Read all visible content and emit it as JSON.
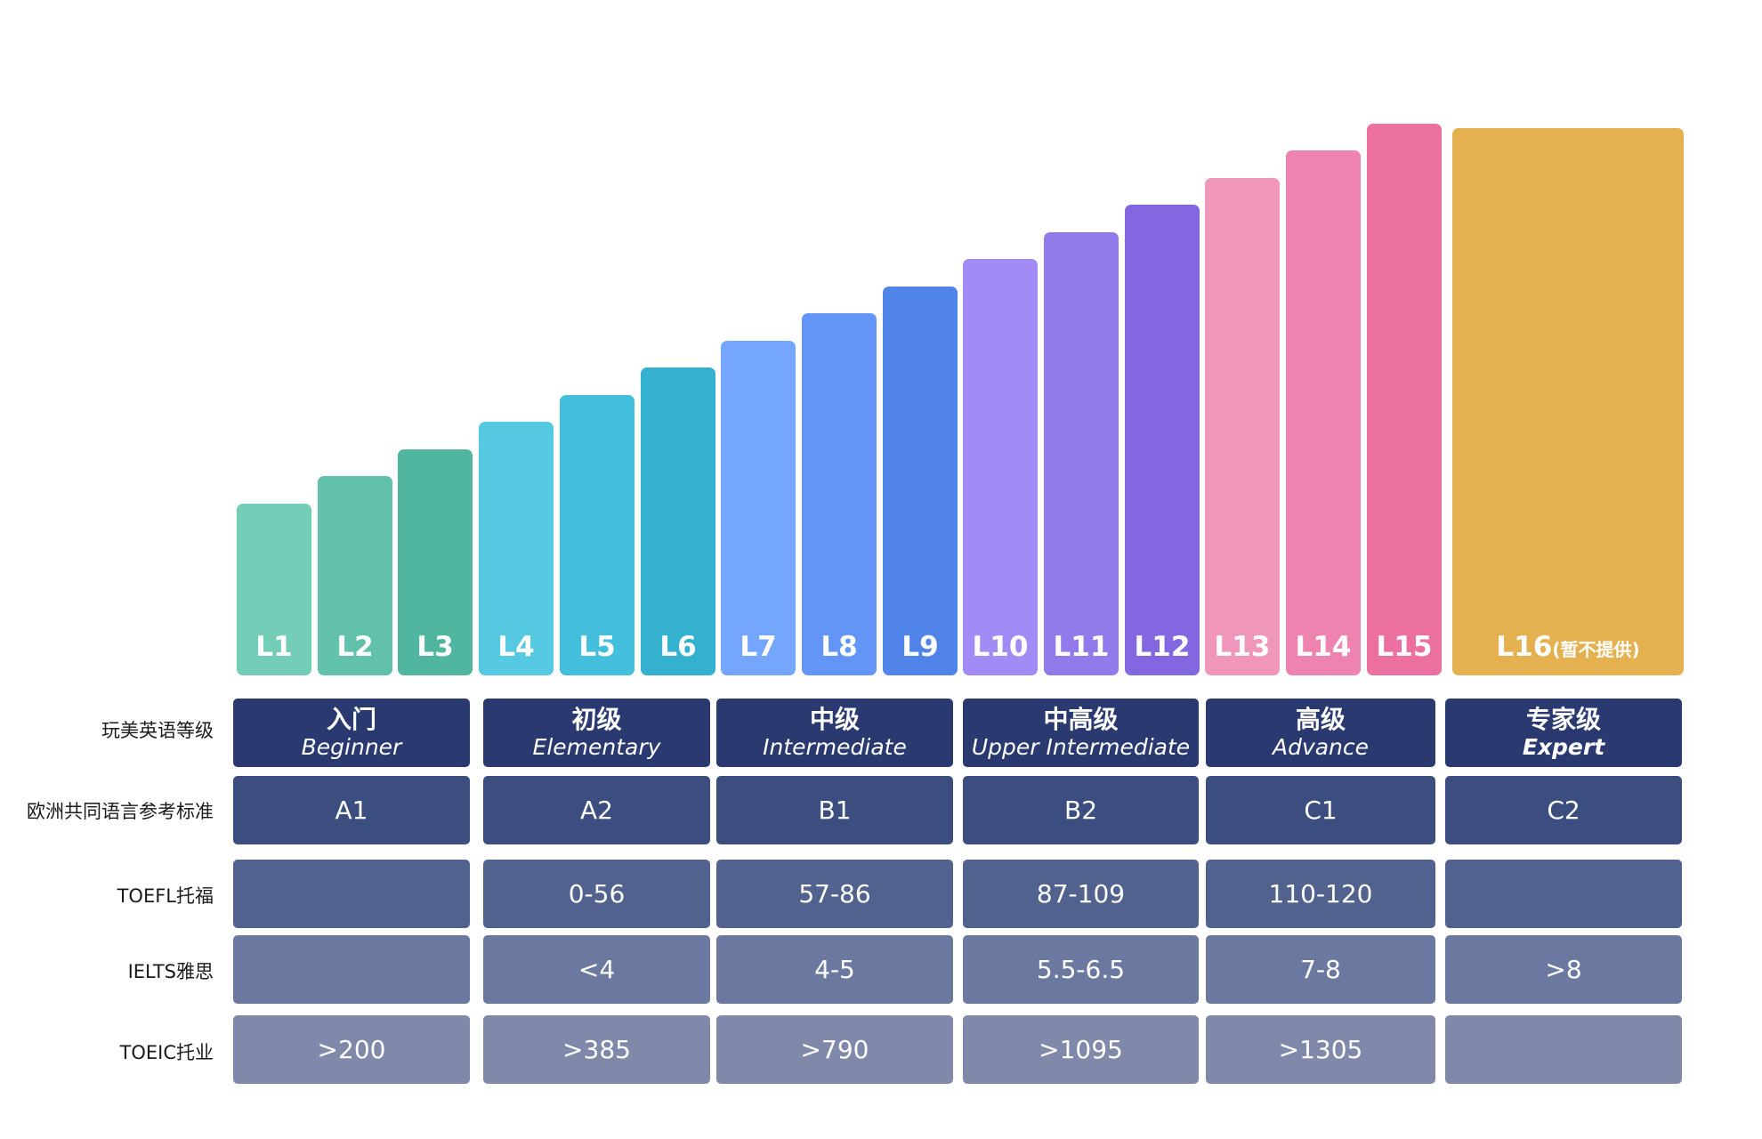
{
  "chart_data": {
    "type": "bar",
    "categories": [
      "L1",
      "L2",
      "L3",
      "L4",
      "L5",
      "L6",
      "L7",
      "L8",
      "L9",
      "L10",
      "L11",
      "L12",
      "L13",
      "L14",
      "L15",
      "L16"
    ],
    "values": [
      1,
      2,
      3,
      4,
      5,
      6,
      7,
      8,
      9,
      10,
      11,
      12,
      13,
      14,
      15,
      16
    ],
    "bar_labels": [
      "L1",
      "L2",
      "L3",
      "L4",
      "L5",
      "L6",
      "L7",
      "L8",
      "L9",
      "L10",
      "L11",
      "L12",
      "L13",
      "L14",
      "L15",
      "L16"
    ],
    "last_bar_note": "(暂不提供)",
    "colors": [
      "#74cdb7",
      "#62c1aa",
      "#50b69f",
      "#55c9e1",
      "#43bedb",
      "#33b1cf",
      "#75a6fe",
      "#6395f7",
      "#5184e9",
      "#a28bf5",
      "#937aeb",
      "#8267e0",
      "#ef96ba",
      "#ed83ae",
      "#eb6f9f",
      "#e5b150"
    ]
  },
  "table": {
    "row_labels": [
      "玩美英语等级",
      "欧洲共同语言参考标准",
      "TOEFL托福",
      "IELTS雅思",
      "TOEIC托业"
    ],
    "levels": [
      {
        "cn": "入门",
        "en": "Beginner"
      },
      {
        "cn": "初级",
        "en": "Elementary"
      },
      {
        "cn": "中级",
        "en": "Intermediate"
      },
      {
        "cn": "中高级",
        "en": "Upper Intermediate"
      },
      {
        "cn": "高级",
        "en": "Advance"
      },
      {
        "cn": "专家级",
        "en": "Expert"
      }
    ],
    "cefr": [
      "A1",
      "A2",
      "B1",
      "B2",
      "C1",
      "C2"
    ],
    "toefl": [
      "",
      "0-56",
      "57-86",
      "87-109",
      "110-120",
      ""
    ],
    "ielts": [
      "",
      "<4",
      "4-5",
      "5.5-6.5",
      "7-8",
      ">8"
    ],
    "toeic": [
      ">200",
      ">385",
      ">790",
      ">1095",
      ">1305",
      ""
    ],
    "row_colors": [
      "#2a3a70",
      "#3c4e80",
      "#52628e",
      "#6b78a0",
      "#8089aa"
    ]
  }
}
